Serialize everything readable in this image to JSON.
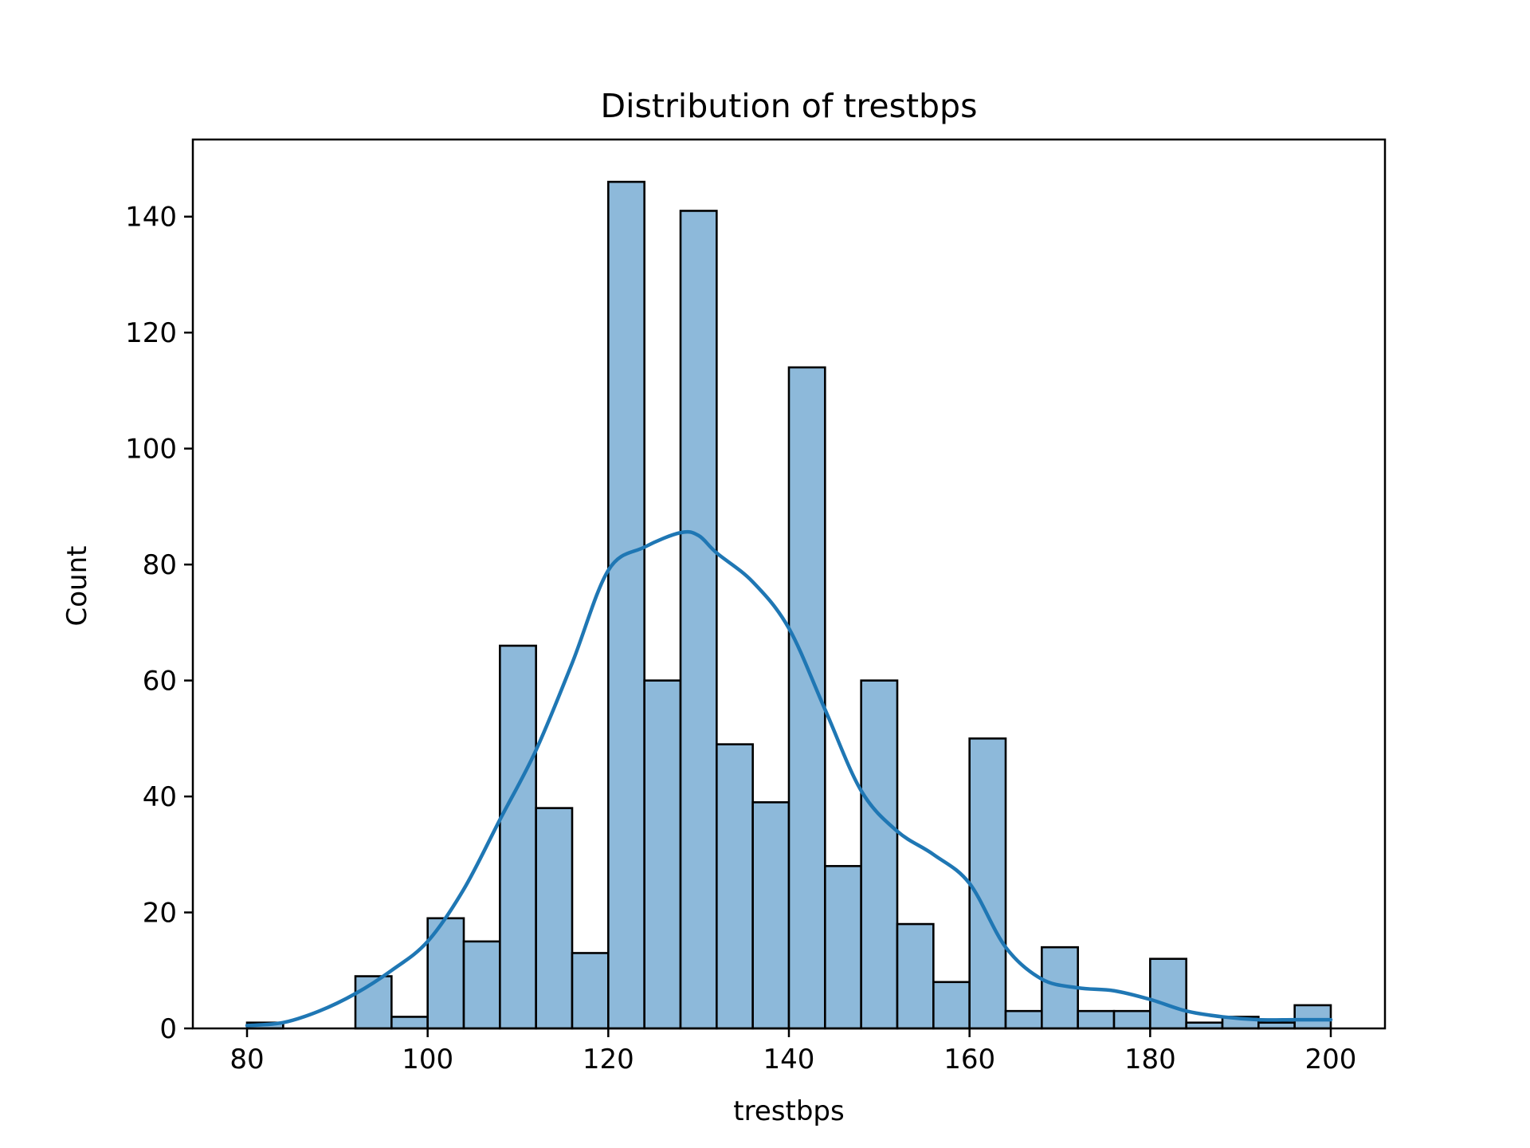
{
  "chart_data": {
    "type": "bar",
    "title": "Distribution of trestbps",
    "xlabel": "trestbps",
    "ylabel": "Count",
    "bin_width": 4,
    "bins": [
      {
        "start": 80,
        "end": 84,
        "count": 1
      },
      {
        "start": 84,
        "end": 88,
        "count": 0
      },
      {
        "start": 88,
        "end": 92,
        "count": 0
      },
      {
        "start": 92,
        "end": 96,
        "count": 9
      },
      {
        "start": 96,
        "end": 100,
        "count": 2
      },
      {
        "start": 100,
        "end": 104,
        "count": 19
      },
      {
        "start": 104,
        "end": 108,
        "count": 15
      },
      {
        "start": 108,
        "end": 112,
        "count": 66
      },
      {
        "start": 112,
        "end": 116,
        "count": 38
      },
      {
        "start": 116,
        "end": 120,
        "count": 13
      },
      {
        "start": 120,
        "end": 124,
        "count": 146
      },
      {
        "start": 124,
        "end": 128,
        "count": 60
      },
      {
        "start": 128,
        "end": 132,
        "count": 141
      },
      {
        "start": 132,
        "end": 136,
        "count": 49
      },
      {
        "start": 136,
        "end": 140,
        "count": 39
      },
      {
        "start": 140,
        "end": 144,
        "count": 114
      },
      {
        "start": 144,
        "end": 148,
        "count": 28
      },
      {
        "start": 148,
        "end": 152,
        "count": 60
      },
      {
        "start": 152,
        "end": 156,
        "count": 18
      },
      {
        "start": 156,
        "end": 160,
        "count": 8
      },
      {
        "start": 160,
        "end": 164,
        "count": 50
      },
      {
        "start": 164,
        "end": 168,
        "count": 3
      },
      {
        "start": 168,
        "end": 172,
        "count": 14
      },
      {
        "start": 172,
        "end": 176,
        "count": 3
      },
      {
        "start": 176,
        "end": 180,
        "count": 3
      },
      {
        "start": 180,
        "end": 184,
        "count": 12
      },
      {
        "start": 184,
        "end": 188,
        "count": 1
      },
      {
        "start": 188,
        "end": 192,
        "count": 2
      },
      {
        "start": 192,
        "end": 196,
        "count": 1
      },
      {
        "start": 196,
        "end": 200,
        "count": 4
      }
    ],
    "kde": {
      "name": "KDE",
      "x": [
        80,
        84,
        88,
        92,
        96,
        100,
        104,
        108,
        112,
        116,
        120,
        124,
        128,
        130,
        132,
        136,
        140,
        144,
        148,
        152,
        156,
        160,
        164,
        168,
        172,
        176,
        180,
        184,
        188,
        192,
        196,
        200
      ],
      "y": [
        0.5,
        1,
        3,
        6,
        10,
        15,
        24,
        36,
        48,
        63,
        79,
        83,
        85.5,
        85,
        82,
        77,
        69,
        55,
        41,
        34,
        30,
        25,
        14,
        8.5,
        7,
        6.5,
        5,
        3,
        2,
        1.5,
        1.5,
        1.5
      ]
    },
    "xlim": [
      74,
      206
    ],
    "ylim": [
      0,
      153.3
    ],
    "xticks": [
      80,
      100,
      120,
      140,
      160,
      180,
      200
    ],
    "yticks": [
      0,
      20,
      40,
      60,
      80,
      100,
      120,
      140
    ],
    "colors": {
      "bar_fill": "#8db9da",
      "bar_edge": "#000000",
      "kde_line": "#1f77b4",
      "axes": "#000000"
    },
    "grid": false,
    "legend": "none"
  }
}
